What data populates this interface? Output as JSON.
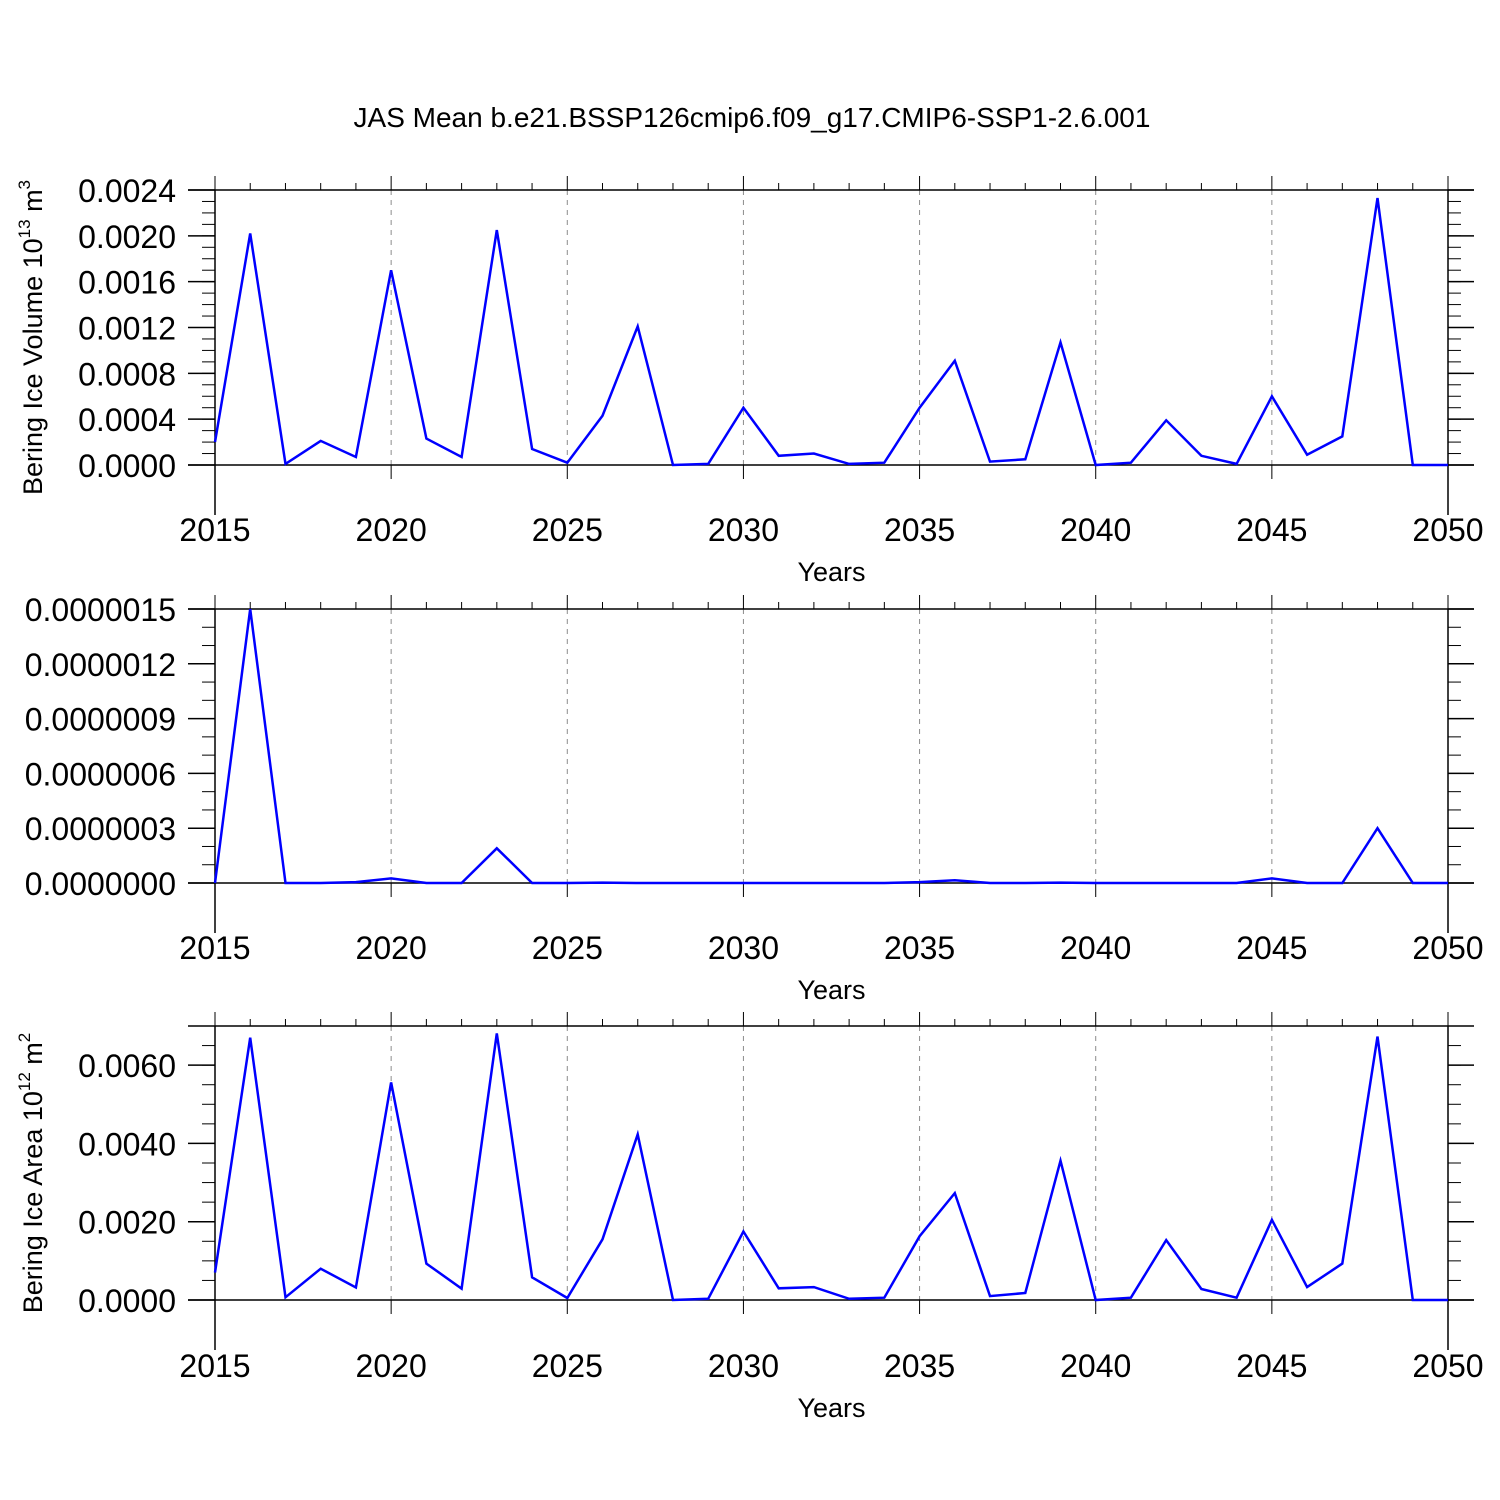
{
  "title": "JAS Mean b.e21.BSSP126cmip6.f09_g17.CMIP6-SSP1-2.6.001",
  "line_color": "#0000ff",
  "chart_data": [
    {
      "type": "line",
      "ylabel": {
        "text": "Bering Ice Volume 10",
        "exp": "13",
        "unit": " m",
        "unit_exp": "3"
      },
      "xlabel": "Years",
      "xlim": [
        2015,
        2050
      ],
      "ylim": [
        0,
        0.0024
      ],
      "xticks": [
        "2015",
        "2020",
        "2025",
        "2030",
        "2035",
        "2040",
        "2045",
        "2050"
      ],
      "yticks": [
        "0.0000",
        "0.0004",
        "0.0008",
        "0.0012",
        "0.0016",
        "0.0020",
        "0.0024"
      ],
      "grid": "dashed vertical lines at labeled x ticks",
      "x": [
        2015,
        2016,
        2017,
        2018,
        2019,
        2020,
        2021,
        2022,
        2023,
        2024,
        2025,
        2026,
        2027,
        2028,
        2029,
        2030,
        2031,
        2032,
        2033,
        2034,
        2035,
        2036,
        2037,
        2038,
        2039,
        2040,
        2041,
        2042,
        2043,
        2044,
        2045,
        2046,
        2047,
        2048,
        2049,
        2050
      ],
      "values": [
        0.0002,
        0.00202,
        1e-05,
        0.00021,
        7e-05,
        0.0017,
        0.00023,
        7e-05,
        0.00205,
        0.00014,
        2e-05,
        0.00043,
        0.00121,
        0.0,
        1e-05,
        0.0005,
        8e-05,
        0.0001,
        1e-05,
        2e-05,
        0.0005,
        0.00091,
        3e-05,
        5e-05,
        0.00107,
        0.0,
        2e-05,
        0.00039,
        8e-05,
        1e-05,
        0.0006,
        9e-05,
        0.00025,
        0.00233,
        0.0,
        0.0
      ]
    },
    {
      "type": "line",
      "ylabel": null,
      "xlabel": "Years",
      "xlim": [
        2015,
        2050
      ],
      "ylim": [
        0,
        1.5e-06
      ],
      "xticks": [
        "2015",
        "2020",
        "2025",
        "2030",
        "2035",
        "2040",
        "2045",
        "2050"
      ],
      "yticks": [
        "0.0000000",
        "0.0000003",
        "0.0000006",
        "0.0000009",
        "0.0000012",
        "0.0000015"
      ],
      "grid": "dashed vertical lines at labeled x ticks",
      "x": [
        2015,
        2016,
        2017,
        2018,
        2019,
        2020,
        2021,
        2022,
        2023,
        2024,
        2025,
        2026,
        2027,
        2028,
        2029,
        2030,
        2031,
        2032,
        2033,
        2034,
        2035,
        2036,
        2037,
        2038,
        2039,
        2040,
        2041,
        2042,
        2043,
        2044,
        2045,
        2046,
        2047,
        2048,
        2049,
        2050
      ],
      "values": [
        0.0,
        1.5e-06,
        0.0,
        0.0,
        5e-09,
        2.5e-08,
        0.0,
        0.0,
        1.9e-07,
        0.0,
        0.0,
        2e-09,
        0.0,
        0.0,
        0.0,
        0.0,
        0.0,
        0.0,
        0.0,
        0.0,
        5e-09,
        1.5e-08,
        0.0,
        0.0,
        2e-09,
        0.0,
        0.0,
        0.0,
        0.0,
        0.0,
        2.5e-08,
        0.0,
        0.0,
        3e-07,
        0.0,
        0.0
      ]
    },
    {
      "type": "line",
      "ylabel": {
        "text": "Bering Ice Area 10",
        "exp": "12",
        "unit": " m",
        "unit_exp": "2"
      },
      "xlabel": "Years",
      "xlim": [
        2015,
        2050
      ],
      "ylim": [
        0,
        0.007
      ],
      "xticks": [
        "2015",
        "2020",
        "2025",
        "2030",
        "2035",
        "2040",
        "2045",
        "2050"
      ],
      "yticks": [
        "0.0000",
        "0.0020",
        "0.0040",
        "0.0060"
      ],
      "ytick_values": [
        0,
        0.002,
        0.004,
        0.006
      ],
      "grid": "dashed vertical lines at labeled x ticks",
      "x": [
        2015,
        2016,
        2017,
        2018,
        2019,
        2020,
        2021,
        2022,
        2023,
        2024,
        2025,
        2026,
        2027,
        2028,
        2029,
        2030,
        2031,
        2032,
        2033,
        2034,
        2035,
        2036,
        2037,
        2038,
        2039,
        2040,
        2041,
        2042,
        2043,
        2044,
        2045,
        2046,
        2047,
        2048,
        2049,
        2050
      ],
      "values": [
        0.0007,
        0.0067,
        7e-05,
        0.0008,
        0.00032,
        0.00556,
        0.00093,
        0.00029,
        0.00681,
        0.00058,
        5e-05,
        0.00155,
        0.00423,
        0.0,
        3e-05,
        0.00175,
        0.0003,
        0.00033,
        3e-05,
        6e-05,
        0.00163,
        0.00273,
        0.0001,
        0.00018,
        0.00356,
        0.0,
        6e-05,
        0.00153,
        0.00028,
        6e-05,
        0.00205,
        0.00033,
        0.00093,
        0.00673,
        0.0,
        0.0
      ]
    }
  ]
}
